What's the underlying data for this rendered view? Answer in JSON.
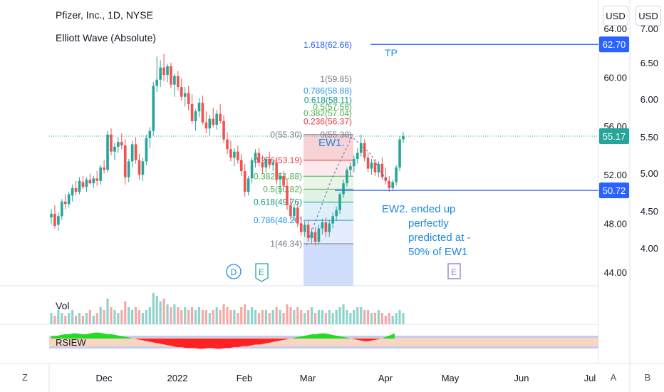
{
  "header": {
    "title": "Pfizer, Inc., 1D, NYSE",
    "indicator": "Elliott Wave (Absolute)",
    "unit_left": "USD",
    "unit_right": "USD"
  },
  "corners": {
    "left": "Z",
    "auto": "A",
    "bottom_right": "B"
  },
  "colors": {
    "up": "#26a69a",
    "down": "#ef5350",
    "blue": "#2962ff",
    "label_green": "#26a69a"
  },
  "chart_data": {
    "type": "candlestick",
    "x_tick_labels": [
      "Dec",
      "2022",
      "Feb",
      "Mar",
      "Apr",
      "May",
      "Jun",
      "Jul"
    ],
    "y_ticks_left": [
      "64.00",
      "60.00",
      "56.00",
      "52.00",
      "48.00",
      "44.00"
    ],
    "y_ticks_right": [
      "7.00",
      "6.50",
      "6.00",
      "5.50",
      "5.00",
      "4.50",
      "4.00"
    ],
    "price_labels": [
      {
        "value": "62.70",
        "color": "#2962ff",
        "price": 62.7
      },
      {
        "value": "55.17",
        "color": "#26a69a",
        "price": 55.17
      },
      {
        "value": "50.72",
        "color": "#2962ff",
        "price": 50.72
      }
    ],
    "ohlc": [
      [
        48.5,
        49.2,
        47.9,
        48.8
      ],
      [
        48.8,
        49.5,
        47.6,
        47.8
      ],
      [
        47.9,
        48.9,
        47.4,
        48.6
      ],
      [
        48.6,
        50.0,
        48.3,
        49.8
      ],
      [
        49.8,
        50.4,
        49.2,
        49.6
      ],
      [
        49.6,
        50.6,
        49.3,
        50.4
      ],
      [
        50.3,
        51.2,
        49.8,
        50.9
      ],
      [
        50.9,
        51.5,
        50.3,
        50.6
      ],
      [
        50.6,
        51.8,
        50.4,
        51.5
      ],
      [
        51.4,
        51.9,
        50.8,
        51.0
      ],
      [
        51.0,
        51.8,
        50.6,
        51.6
      ],
      [
        51.6,
        52.1,
        51.2,
        51.3
      ],
      [
        51.3,
        51.9,
        50.9,
        51.7
      ],
      [
        51.7,
        52.3,
        51.1,
        51.5
      ],
      [
        51.5,
        52.8,
        51.2,
        52.6
      ],
      [
        52.6,
        53.2,
        52.1,
        52.4
      ],
      [
        52.4,
        55.6,
        52.2,
        55.3
      ],
      [
        55.3,
        55.8,
        53.6,
        53.9
      ],
      [
        53.9,
        54.6,
        53.2,
        54.3
      ],
      [
        54.3,
        55.1,
        53.8,
        54.7
      ],
      [
        54.7,
        55.4,
        54.1,
        54.4
      ],
      [
        54.4,
        54.9,
        51.2,
        51.8
      ],
      [
        51.8,
        53.3,
        51.4,
        53.1
      ],
      [
        53.1,
        54.8,
        52.6,
        54.5
      ],
      [
        54.5,
        55.1,
        52.9,
        53.2
      ],
      [
        53.2,
        53.7,
        51.6,
        52.0
      ],
      [
        52.0,
        53.4,
        51.5,
        53.1
      ],
      [
        53.1,
        55.3,
        52.8,
        55.0
      ],
      [
        55.0,
        55.9,
        54.2,
        55.6
      ],
      [
        55.6,
        59.6,
        55.2,
        59.3
      ],
      [
        59.3,
        61.7,
        58.8,
        59.8
      ],
      [
        59.8,
        61.4,
        59.2,
        60.8
      ],
      [
        60.8,
        61.9,
        59.7,
        60.2
      ],
      [
        60.2,
        61.1,
        59.6,
        60.9
      ],
      [
        60.9,
        61.2,
        59.1,
        59.4
      ],
      [
        59.4,
        60.3,
        58.4,
        60.1
      ],
      [
        60.1,
        60.5,
        58.9,
        59.2
      ],
      [
        59.2,
        59.9,
        58.1,
        58.4
      ],
      [
        58.4,
        59.2,
        57.6,
        58.7
      ],
      [
        58.7,
        59.3,
        57.3,
        57.8
      ],
      [
        57.8,
        58.6,
        56.2,
        56.4
      ],
      [
        56.4,
        57.4,
        55.6,
        57.2
      ],
      [
        57.2,
        58.3,
        56.7,
        57.9
      ],
      [
        57.9,
        58.5,
        56.1,
        56.3
      ],
      [
        56.3,
        57.2,
        55.4,
        55.8
      ],
      [
        55.8,
        56.9,
        55.2,
        56.6
      ],
      [
        56.6,
        57.5,
        55.9,
        56.1
      ],
      [
        56.1,
        57.3,
        55.7,
        57.0
      ],
      [
        57.0,
        57.8,
        56.2,
        56.4
      ],
      [
        56.4,
        56.9,
        54.6,
        54.9
      ],
      [
        54.9,
        55.5,
        53.7,
        54.1
      ],
      [
        54.1,
        54.8,
        53.1,
        53.4
      ],
      [
        53.4,
        54.2,
        52.7,
        53.9
      ],
      [
        53.9,
        54.4,
        52.9,
        53.2
      ],
      [
        53.2,
        53.7,
        51.9,
        52.3
      ],
      [
        52.3,
        52.9,
        50.2,
        50.6
      ],
      [
        50.6,
        51.9,
        50.3,
        51.7
      ],
      [
        51.7,
        53.4,
        51.3,
        53.2
      ],
      [
        53.2,
        54.1,
        52.6,
        53.8
      ],
      [
        53.8,
        54.2,
        52.7,
        53.0
      ],
      [
        53.0,
        53.6,
        52.1,
        52.6
      ],
      [
        52.6,
        53.5,
        52.2,
        53.3
      ],
      [
        53.3,
        53.9,
        52.5,
        52.8
      ],
      [
        52.8,
        53.2,
        52.3,
        53.0
      ],
      [
        53.0,
        53.4,
        51.2,
        51.6
      ],
      [
        51.6,
        52.2,
        50.4,
        51.9
      ],
      [
        51.9,
        52.3,
        50.8,
        51.1
      ],
      [
        51.1,
        51.7,
        49.1,
        49.5
      ],
      [
        49.5,
        50.1,
        48.3,
        48.6
      ],
      [
        48.6,
        49.6,
        48.2,
        49.3
      ],
      [
        49.3,
        49.7,
        47.7,
        48.0
      ],
      [
        48.0,
        48.6,
        47.0,
        47.3
      ],
      [
        47.3,
        48.2,
        46.9,
        47.9
      ],
      [
        47.9,
        48.3,
        46.5,
        46.8
      ],
      [
        46.8,
        47.6,
        46.3,
        47.3
      ],
      [
        47.3,
        47.7,
        46.2,
        46.5
      ],
      [
        46.5,
        47.9,
        46.3,
        47.6
      ],
      [
        47.6,
        48.4,
        47.1,
        48.1
      ],
      [
        48.1,
        48.5,
        46.9,
        47.3
      ],
      [
        47.3,
        48.3,
        46.9,
        48.0
      ],
      [
        48.0,
        48.9,
        47.6,
        48.6
      ],
      [
        48.6,
        49.4,
        48.2,
        49.1
      ],
      [
        49.1,
        50.6,
        48.8,
        50.4
      ],
      [
        50.4,
        51.6,
        50.1,
        51.3
      ],
      [
        51.3,
        52.6,
        51.0,
        52.4
      ],
      [
        52.4,
        53.0,
        51.9,
        52.7
      ],
      [
        52.7,
        53.6,
        52.2,
        53.3
      ],
      [
        53.3,
        54.2,
        52.9,
        53.8
      ],
      [
        53.8,
        55.3,
        53.5,
        54.6
      ],
      [
        54.6,
        54.9,
        53.1,
        53.4
      ],
      [
        53.4,
        53.8,
        52.2,
        52.5
      ],
      [
        52.5,
        53.3,
        52.0,
        53.0
      ],
      [
        53.0,
        53.3,
        51.9,
        52.2
      ],
      [
        52.2,
        53.1,
        51.8,
        52.9
      ],
      [
        52.9,
        53.4,
        51.6,
        51.8
      ],
      [
        51.8,
        52.6,
        51.2,
        51.5
      ],
      [
        51.5,
        51.9,
        50.6,
        50.9
      ],
      [
        50.9,
        51.6,
        50.7,
        51.4
      ],
      [
        51.4,
        52.8,
        51.1,
        52.6
      ],
      [
        52.6,
        55.2,
        52.3,
        54.9
      ],
      [
        54.9,
        55.5,
        54.6,
        55.17
      ]
    ],
    "volume": [
      4,
      3,
      5,
      4,
      3,
      4,
      5,
      3,
      4,
      3,
      4,
      5,
      3,
      4,
      6,
      5,
      9,
      6,
      5,
      4,
      5,
      8,
      6,
      5,
      6,
      5,
      4,
      5,
      6,
      11,
      10,
      8,
      9,
      7,
      6,
      7,
      6,
      5,
      6,
      5,
      6,
      5,
      6,
      5,
      5,
      4,
      5,
      6,
      5,
      7,
      6,
      5,
      5,
      4,
      6,
      7,
      5,
      6,
      5,
      4,
      5,
      5,
      4,
      5,
      6,
      5,
      4,
      7,
      6,
      5,
      6,
      5,
      4,
      5,
      6,
      4,
      5,
      5,
      4,
      5,
      4,
      5,
      6,
      7,
      5,
      4,
      5,
      6,
      6,
      5,
      5,
      4,
      4,
      5,
      4,
      3,
      4,
      3,
      4,
      5,
      4
    ],
    "rsiew": [
      3,
      3,
      4,
      5,
      5,
      6,
      6,
      5,
      5,
      6,
      7,
      7,
      6,
      5,
      5,
      4,
      3,
      2,
      1,
      0,
      -1,
      -2,
      -3,
      -4,
      -5,
      -6,
      -7,
      -8,
      -9,
      -10,
      -10,
      -11,
      -11,
      -11,
      -12,
      -12,
      -11,
      -11,
      -12,
      -12,
      -11,
      -11,
      -10,
      -10,
      -9,
      -9,
      -8,
      -7,
      -7,
      -6,
      -5,
      -4,
      -3,
      -2,
      -1,
      0,
      1,
      2,
      3,
      4,
      5,
      5,
      6,
      6,
      5,
      4,
      3,
      2,
      1,
      0,
      -1,
      -2,
      -3,
      -3,
      -2,
      -1,
      0,
      2,
      4,
      6
    ],
    "fib_left": [
      {
        "label": "0(55.30)",
        "price": 55.3,
        "color": "#787b86"
      },
      {
        "label": "0.236(53.19)",
        "price": 53.19,
        "color": "#f23645"
      },
      {
        "label": "0.382(51.88)",
        "price": 51.88,
        "color": "#4caf50"
      },
      {
        "label": "0.5(50.82)",
        "price": 50.82,
        "color": "#4caf50"
      },
      {
        "label": "0.618(49.76)",
        "price": 49.76,
        "color": "#089981"
      },
      {
        "label": "0.786(48.26)",
        "price": 48.26,
        "color": "#2196f3"
      },
      {
        "label": "1(46.34)",
        "price": 46.34,
        "color": "#787b86"
      }
    ],
    "fib_upper": [
      {
        "label": "1.618(62.66)",
        "price": 62.66,
        "color": "#2962ff"
      },
      {
        "label": "1(59.85)",
        "price": 59.85,
        "color": "#787b86"
      },
      {
        "label": "0.786(58.88)",
        "price": 58.88,
        "color": "#2196f3"
      },
      {
        "label": "0.618(58.11)",
        "price": 58.11,
        "color": "#089981"
      },
      {
        "label": "0.5(57.58)",
        "price": 57.58,
        "color": "#4caf50"
      },
      {
        "label": "0.382(57.04)",
        "price": 57.04,
        "color": "#4caf50"
      },
      {
        "label": "0.236(56.37)",
        "price": 56.37,
        "color": "#f23645"
      },
      {
        "label": "0(55.30)",
        "price": 55.3,
        "color": "#787b86"
      }
    ],
    "annotations": {
      "tp": "TP",
      "ew1": "EW1.",
      "ew2": [
        "EW2. ended up",
        "perfectly",
        "predicted at -",
        "50% of EW1"
      ],
      "wave_d": "D",
      "wave_e1": "E",
      "wave_e2": "E",
      "vol_label": "Vol",
      "rsi_label": "RSIEW"
    }
  }
}
